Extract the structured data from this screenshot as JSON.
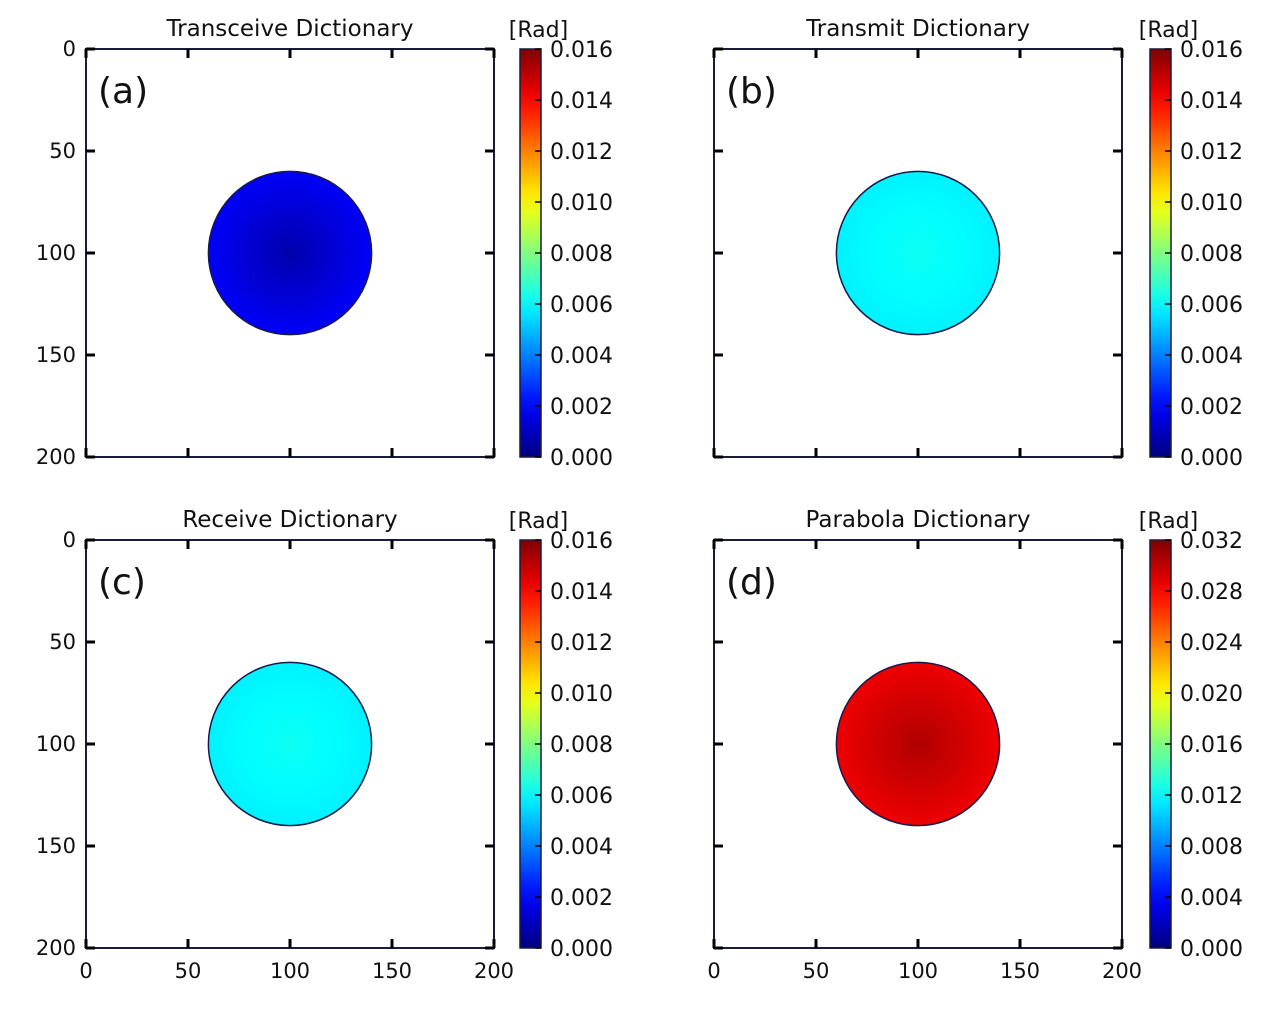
{
  "chart_data": [
    {
      "type": "heatmap",
      "panel_label": "(a)",
      "title": "Transceive Dictionary",
      "xlim": [
        0,
        200
      ],
      "ylim": [
        200,
        0
      ],
      "xticks": [
        0,
        50,
        100,
        150,
        200
      ],
      "yticks": [
        0,
        50,
        100,
        150,
        200
      ],
      "show_xtick_labels": false,
      "show_ytick_labels": true,
      "disk": {
        "center_x": 100,
        "center_y": 100,
        "radius": 40
      },
      "value_center": 0.0007,
      "value_edge": 0.0019,
      "colorbar": {
        "unit": "[Rad]",
        "min": 0.0,
        "max": 0.016,
        "ticks": [
          0.0,
          0.002,
          0.004,
          0.006,
          0.008,
          0.01,
          0.012,
          0.014,
          0.016
        ],
        "tick_labels": [
          "0.000",
          "0.002",
          "0.004",
          "0.006",
          "0.008",
          "0.010",
          "0.012",
          "0.014",
          "0.016"
        ]
      }
    },
    {
      "type": "heatmap",
      "panel_label": "(b)",
      "title": "Transmit Dictionary",
      "xlim": [
        0,
        200
      ],
      "ylim": [
        200,
        0
      ],
      "xticks": [
        0,
        50,
        100,
        150,
        200
      ],
      "yticks": [
        0,
        50,
        100,
        150,
        200
      ],
      "show_xtick_labels": false,
      "show_ytick_labels": false,
      "disk": {
        "center_x": 100,
        "center_y": 100,
        "radius": 40
      },
      "value_center": 0.0062,
      "value_edge": 0.0058,
      "colorbar": {
        "unit": "[Rad]",
        "min": 0.0,
        "max": 0.016,
        "ticks": [
          0.0,
          0.002,
          0.004,
          0.006,
          0.008,
          0.01,
          0.012,
          0.014,
          0.016
        ],
        "tick_labels": [
          "0.000",
          "0.002",
          "0.004",
          "0.006",
          "0.008",
          "0.010",
          "0.012",
          "0.014",
          "0.016"
        ]
      }
    },
    {
      "type": "heatmap",
      "panel_label": "(c)",
      "title": "Receive Dictionary",
      "xlim": [
        0,
        200
      ],
      "ylim": [
        200,
        0
      ],
      "xticks": [
        0,
        50,
        100,
        150,
        200
      ],
      "yticks": [
        0,
        50,
        100,
        150,
        200
      ],
      "show_xtick_labels": true,
      "show_ytick_labels": true,
      "disk": {
        "center_x": 100,
        "center_y": 100,
        "radius": 40
      },
      "value_center": 0.0062,
      "value_edge": 0.0058,
      "colorbar": {
        "unit": "[Rad]",
        "min": 0.0,
        "max": 0.016,
        "ticks": [
          0.0,
          0.002,
          0.004,
          0.006,
          0.008,
          0.01,
          0.012,
          0.014,
          0.016
        ],
        "tick_labels": [
          "0.000",
          "0.002",
          "0.004",
          "0.006",
          "0.008",
          "0.010",
          "0.012",
          "0.014",
          "0.016"
        ]
      }
    },
    {
      "type": "heatmap",
      "panel_label": "(d)",
      "title": "Parabola Dictionary",
      "xlim": [
        0,
        200
      ],
      "ylim": [
        200,
        0
      ],
      "xticks": [
        0,
        50,
        100,
        150,
        200
      ],
      "yticks": [
        0,
        50,
        100,
        150,
        200
      ],
      "show_xtick_labels": true,
      "show_ytick_labels": false,
      "disk": {
        "center_x": 100,
        "center_y": 100,
        "radius": 40
      },
      "value_center": 0.0305,
      "value_edge": 0.0285,
      "colorbar": {
        "unit": "[Rad]",
        "min": 0.0,
        "max": 0.032,
        "ticks": [
          0.0,
          0.004,
          0.008,
          0.012,
          0.016,
          0.02,
          0.024,
          0.028,
          0.032
        ],
        "tick_labels": [
          "0.000",
          "0.004",
          "0.008",
          "0.012",
          "0.016",
          "0.020",
          "0.024",
          "0.028",
          "0.032"
        ]
      }
    }
  ]
}
